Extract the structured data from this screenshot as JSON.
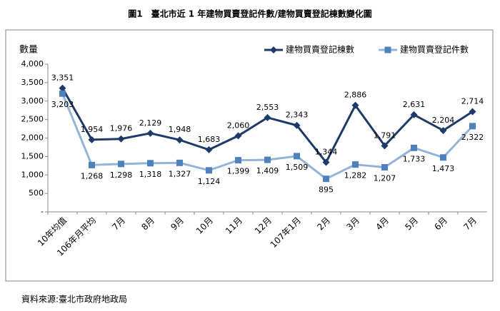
{
  "chart_data": {
    "type": "line",
    "title": "圖1　臺北市近 1 年建物買賣登記件數/建物買賣登記棟數變化圖",
    "y_label": "數量",
    "source": "資料來源:臺北市政府地政局",
    "categories": [
      "10年均值",
      "106年月平均",
      "7月",
      "8月",
      "9月",
      "10月",
      "11月",
      "12月",
      "107年1月",
      "2月",
      "3月",
      "4月",
      "5月",
      "6月",
      "7月"
    ],
    "series": [
      {
        "name": "建物買賣登記棟數",
        "color": "#1f3a68",
        "marker": "diamond",
        "values": [
          3351,
          1954,
          1976,
          2129,
          1948,
          1683,
          2060,
          2553,
          2343,
          1344,
          2886,
          1791,
          2631,
          2204,
          2714
        ],
        "value_labels": [
          "3,351",
          "1,954",
          "1,976",
          "2,129",
          "1,948",
          "1,683",
          "2,060",
          "2,553",
          "2,343",
          "1,344",
          "2,886",
          "1,791",
          "2,631",
          "2,204",
          "2,714"
        ]
      },
      {
        "name": "建物買賣登記件數",
        "color": "#95b3d7",
        "marker_color": "#4f81bd",
        "marker": "square",
        "values": [
          3203,
          1268,
          1298,
          1318,
          1327,
          1124,
          1399,
          1409,
          1509,
          895,
          1282,
          1207,
          1733,
          1473,
          2322
        ],
        "value_labels": [
          "3,203",
          "1,268",
          "1,298",
          "1,318",
          "1,327",
          "1,124",
          "1,399",
          "1,409",
          "1,509",
          "895",
          "1,282",
          "1,207",
          "1,733",
          "1,473",
          "2,322"
        ]
      }
    ],
    "ylim": [
      0,
      4000
    ],
    "yticks": [
      {
        "value": 0,
        "label": "-"
      },
      500,
      {
        "value": 1000,
        "label": "1,000"
      },
      {
        "value": 1500,
        "label": "1,500"
      },
      {
        "value": 2000,
        "label": "2,000"
      },
      {
        "value": 2500,
        "label": "2,500"
      },
      {
        "value": 3000,
        "label": "3,000"
      },
      {
        "value": 3500,
        "label": "3,500"
      },
      {
        "value": 4000,
        "label": "4,000"
      }
    ],
    "legend": "top-right"
  }
}
